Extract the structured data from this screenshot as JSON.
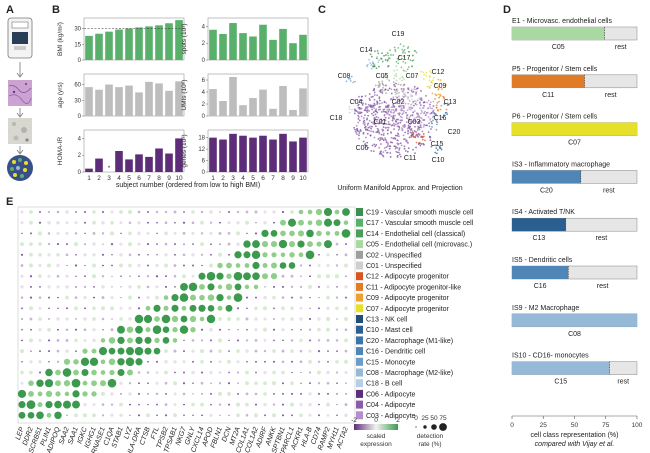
{
  "panels": [
    "A",
    "B",
    "C",
    "D",
    "E"
  ],
  "colors": {
    "green": "#58b06a",
    "gray": "#bdbdbd",
    "purple": "#5e2d7a",
    "yellow": "#e6e02a",
    "orange": "#e07b28",
    "blue_dark": "#2a5f8f",
    "blue_mid": "#4f86b7",
    "blue_light": "#96b9d8",
    "light_green": "#a8d9a0",
    "track": "#e6e6e6"
  },
  "panel_b": {
    "xlabel": "subject number (ordered from low to high BMI)",
    "subjects": [
      "1",
      "2",
      "3",
      "4",
      "5",
      "6",
      "7",
      "8",
      "9",
      "10"
    ],
    "charts": [
      {
        "id": "bmi",
        "ylabel": "BMI (kg/m²)",
        "ticks": [
          "0",
          "15",
          "30"
        ],
        "ymax": 40,
        "values": [
          23,
          25,
          27,
          29,
          30,
          31,
          32,
          33,
          35,
          38
        ],
        "color": "green",
        "dashed": 30
      },
      {
        "id": "age",
        "ylabel": "age (yrs)",
        "ticks": [
          "0",
          "30",
          "60"
        ],
        "ymax": 80,
        "values": [
          55,
          50,
          60,
          55,
          58,
          45,
          65,
          62,
          48,
          66
        ],
        "color": "gray"
      },
      {
        "id": "homa",
        "ylabel": "HOMA-IR",
        "ticks": [
          "0",
          "2",
          "4"
        ],
        "ymax": 5,
        "values": [
          0.4,
          1.6,
          0,
          2.5,
          1.5,
          2.1,
          1.8,
          2.8,
          2.2,
          4.0
        ],
        "color": "purple",
        "star_index": 2,
        "star": "*"
      },
      {
        "id": "spots",
        "ylabel": "spots (10³)",
        "ticks": [
          "0",
          "2",
          "4"
        ],
        "ymax": 5,
        "values": [
          3.6,
          3.1,
          4.4,
          3.2,
          2.8,
          4.2,
          2.4,
          3.7,
          2.0,
          3.0
        ],
        "color": "green"
      },
      {
        "id": "umis",
        "ylabel": "UMIs (10⁶)",
        "ticks": [
          "0",
          "2",
          "4",
          "6"
        ],
        "ymax": 7,
        "values": [
          4.5,
          2.5,
          6.5,
          1.8,
          3.0,
          4.4,
          1.2,
          5.0,
          1.0,
          4.6
        ],
        "color": "gray"
      },
      {
        "id": "genes",
        "ylabel": "genes (10³)",
        "ticks": [
          "0",
          "6",
          "12",
          "18"
        ],
        "ymax": 22,
        "values": [
          18,
          17,
          20,
          19,
          18,
          19,
          17,
          20,
          16,
          18
        ],
        "color": "purple"
      }
    ]
  },
  "panel_c": {
    "xlabel": "Uniform Manifold Approx. and Projection",
    "clusters": [
      "C19",
      "C14",
      "C17",
      "C08",
      "C05",
      "C07",
      "C12",
      "C09",
      "C13",
      "C18",
      "C04",
      "C02",
      "C16",
      "C01",
      "C03",
      "C20",
      "C06",
      "C11",
      "C15",
      "C10"
    ]
  },
  "panel_d": {
    "xlabel_line1": "cell class representation (%)",
    "xlabel_line2": "compared with Vijay et al.",
    "ticks": [
      "0",
      "25",
      "50",
      "75",
      "100"
    ],
    "rest_label": "rest",
    "bars": [
      {
        "title": "E1 - Microvasc. endothelial cells",
        "cluster": "C05",
        "fraction": 0.74,
        "color": "light_green"
      },
      {
        "title": "P5 - Progenitor / Stem cells",
        "cluster": "C11",
        "fraction": 0.58,
        "color": "orange"
      },
      {
        "title": "P6 - Progenitor / Stem cells",
        "cluster": "C07",
        "fraction": 1.0,
        "color": "yellow"
      },
      {
        "title": "IS3 - Inflammatory macrophage",
        "cluster": "C20",
        "fraction": 0.55,
        "color": "blue_mid"
      },
      {
        "title": "IS4 - Activated T/NK",
        "cluster": "C13",
        "fraction": 0.43,
        "color": "blue_dark"
      },
      {
        "title": "IS5 - Dendritic cells",
        "cluster": "C16",
        "fraction": 0.45,
        "color": "blue_mid"
      },
      {
        "title": "IS9 - M2 Macrophage",
        "cluster": "C08",
        "fraction": 1.0,
        "color": "blue_light"
      },
      {
        "title": "IS10 - CD16- monocytes",
        "cluster": "C15",
        "fraction": 0.78,
        "color": "blue_light"
      }
    ]
  },
  "panel_e": {
    "legend_title_scaled": "scaled",
    "legend_title_expression": "expression",
    "legend_ticks": [
      "-2",
      "0",
      "2"
    ],
    "detection_title_1": "detection",
    "detection_title_2": "rate (%)",
    "detection_ticks": [
      "0",
      "25",
      "50",
      "75"
    ],
    "clusters": [
      {
        "label": "C19 - Vascular smooth muscle cell",
        "color": "#3c8f4e"
      },
      {
        "label": "C17 - Vascular smooth muscle cell",
        "color": "#58b06a"
      },
      {
        "label": "C14 - Endothelial cell (classical)",
        "color": "#4c9e5e"
      },
      {
        "label": "C05 - Endothelial cell (microvasc.)",
        "color": "#a8d9a0"
      },
      {
        "label": "C02 - Unspecified",
        "color": "#9e9e9e"
      },
      {
        "label": "C01 - Unspecified",
        "color": "#cfcfcf"
      },
      {
        "label": "C12 - Adipocyte progenitor",
        "color": "#d9551f"
      },
      {
        "label": "C11 - Adipocyte progenitor-like",
        "color": "#e07b28"
      },
      {
        "label": "C09 - Adipocyte progenitor",
        "color": "#f0a030"
      },
      {
        "label": "C07 - Adipocyte progenitor",
        "color": "#e6e02a"
      },
      {
        "label": "C13 - NK cell",
        "color": "#1f4e79"
      },
      {
        "label": "C10 - Mast cell",
        "color": "#2a5f8f"
      },
      {
        "label": "C20 - Macrophage (M1-like)",
        "color": "#3b74a8"
      },
      {
        "label": "C16 - Dendritic cell",
        "color": "#4f86b7"
      },
      {
        "label": "C15 - Monocyte",
        "color": "#6d9cc6"
      },
      {
        "label": "C08 - Macrophage (M2-like)",
        "color": "#96b9d8"
      },
      {
        "label": "C18 - B cell",
        "color": "#b7cfe6"
      },
      {
        "label": "C06 - Adipocyte",
        "color": "#5e2d7a"
      },
      {
        "label": "C04 - Adipocyte",
        "color": "#8a5ba8"
      },
      {
        "label": "C03 - Adipocyte",
        "color": "#b58fcc"
      }
    ],
    "genes": [
      "LEP",
      "DDR2",
      "SCRB51",
      "PLIN1",
      "ADIPOQ",
      "SAA2",
      "SAA1",
      "IGKC",
      "IGHG1",
      "RNASE1",
      "C1QA",
      "STAB1",
      "LYZ",
      "HLA-DRA",
      "CTSB",
      "FTL",
      "TPSB2",
      "TPSAB1",
      "NKG7",
      "GNLY",
      "CXCL14",
      "APOD",
      "FBLN1",
      "DCN",
      "MT2A",
      "COL1A1",
      "COL1A2",
      "ADIRF",
      "ANKK",
      "SPTBN1",
      "SPARCL1",
      "ACKR1",
      "HLA-B",
      "CD74",
      "RAMP2",
      "MYH11",
      "ACTA2"
    ]
  }
}
